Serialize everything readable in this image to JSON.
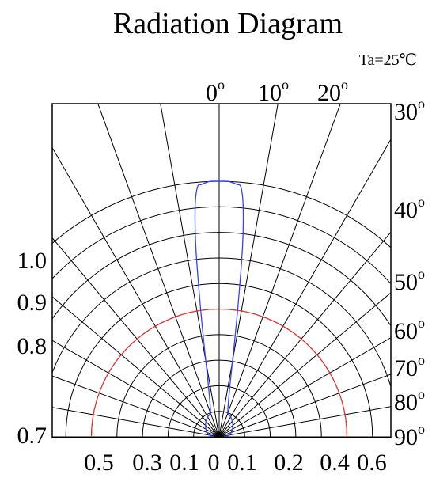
{
  "chart_data": {
    "type": "polar",
    "title": "Radiation Diagram",
    "condition": "Ta=25℃",
    "angle_labels_top": [
      "0",
      "10",
      "20"
    ],
    "angle_labels_right": [
      "30",
      "40",
      "50",
      "60",
      "70",
      "80",
      "90"
    ],
    "degree_mark": "o",
    "radial_labels_left": [
      "1.0",
      "0.9",
      "0.8",
      "0.7"
    ],
    "bottom_labels": [
      "0.5",
      "0.3",
      "0.1",
      "0",
      "0.1",
      "0.2",
      "0.4",
      "0.6"
    ],
    "grid_ring_count": 10,
    "grid_spoke_step_deg": 10,
    "reference_ring_value": 0.5,
    "series": [
      {
        "color": "#3344ff",
        "points": [
          {
            "angle": 0,
            "value": 1.0
          },
          {
            "angle": 2,
            "value": 1.0
          },
          {
            "angle": 4,
            "value": 0.99
          },
          {
            "angle": 5,
            "value": 0.98
          },
          {
            "angle": 6,
            "value": 0.9
          },
          {
            "angle": 7,
            "value": 0.75
          },
          {
            "angle": 8,
            "value": 0.55
          },
          {
            "angle": 9,
            "value": 0.4
          },
          {
            "angle": 10,
            "value": 0.3
          },
          {
            "angle": 12,
            "value": 0.2
          },
          {
            "angle": 15,
            "value": 0.14
          },
          {
            "angle": 20,
            "value": 0.1
          },
          {
            "angle": 30,
            "value": 0.09
          },
          {
            "angle": 40,
            "value": 0.08
          },
          {
            "angle": 50,
            "value": 0.07
          },
          {
            "angle": 60,
            "value": 0.06
          },
          {
            "angle": 70,
            "value": 0.05
          },
          {
            "angle": 80,
            "value": 0.04
          },
          {
            "angle": 90,
            "value": 0.02
          }
        ]
      }
    ],
    "colors": {
      "grid": "#000000",
      "reference_ring": "#ee3333",
      "curve": "#3344ff"
    }
  }
}
